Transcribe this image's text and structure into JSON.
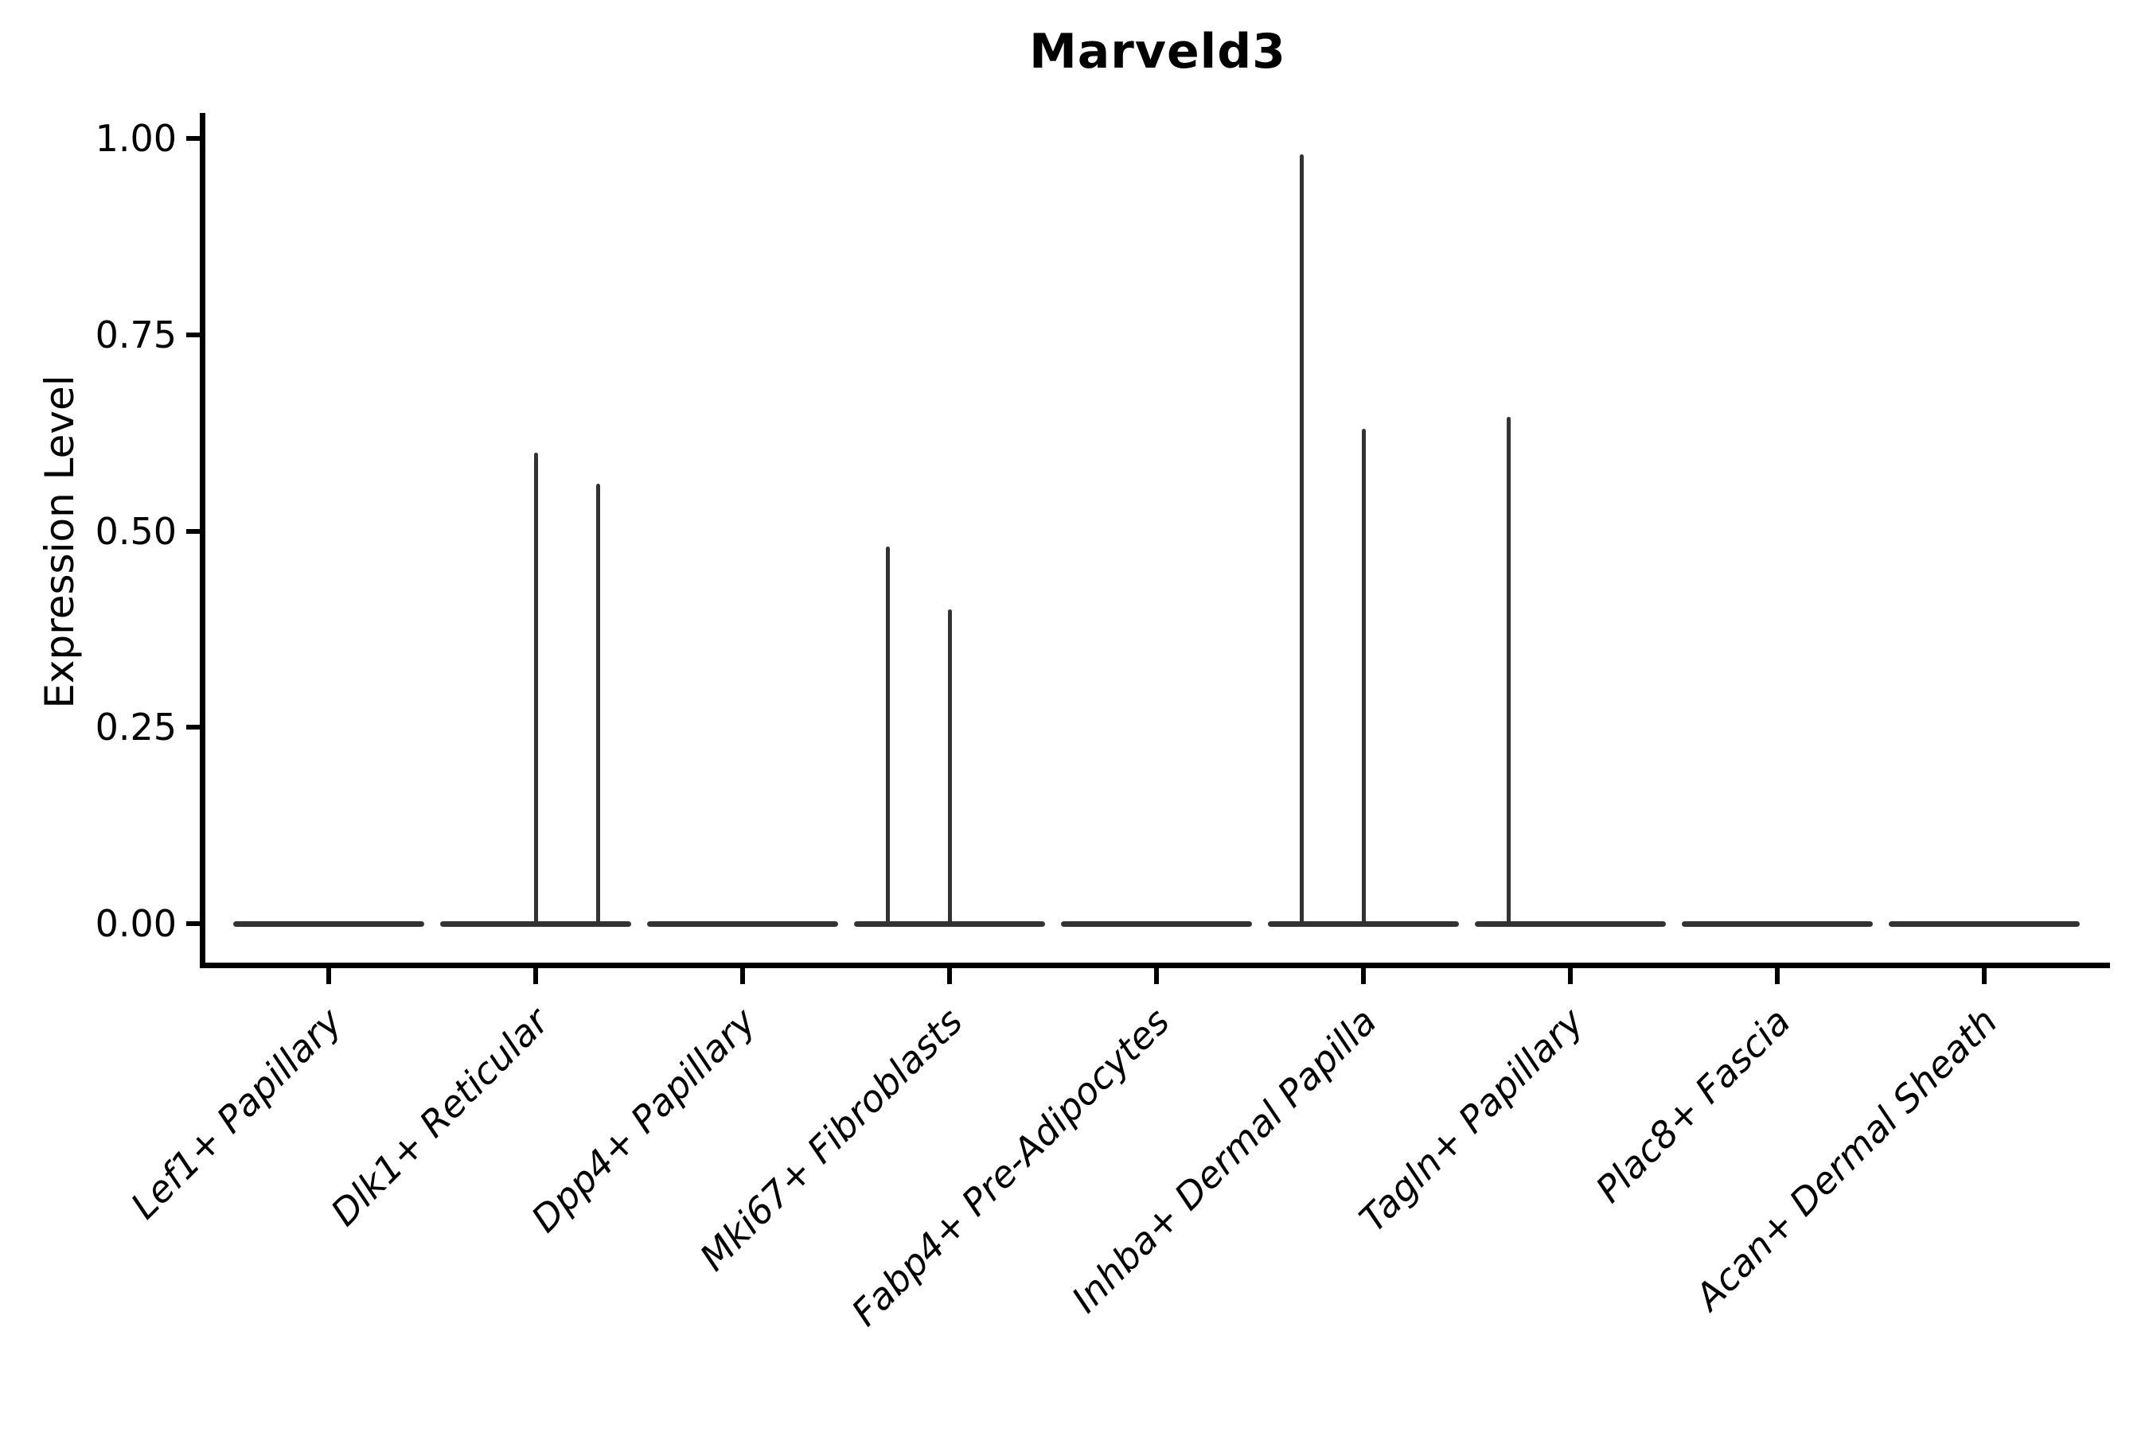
{
  "chart_data": {
    "type": "violin",
    "title": "Marveld3",
    "ylabel": "Expression Level",
    "xlabel": "",
    "grid": false,
    "legend": null,
    "ylim": [
      -0.05,
      1.05
    ],
    "yticks": [
      0.0,
      0.25,
      0.5,
      0.75,
      1.0
    ],
    "ytick_labels": [
      "0.00",
      "0.25",
      "0.50",
      "0.75",
      "1.00"
    ],
    "categories": [
      "Lef1+ Papillary",
      "Dlk1+ Reticular",
      "Dpp4+ Papillary",
      "Mki67+ Fibroblasts",
      "Fabp4+ Pre-Adipocytes",
      "Inhba+ Dermal Papilla",
      "Tagln+ Papillary",
      "Plac8+ Fascia",
      "Acan+ Dermal Sheath"
    ],
    "violins": [
      {
        "category": "Lef1+ Papillary",
        "baseline_value": 0.0,
        "spikes": []
      },
      {
        "category": "Dlk1+ Reticular",
        "baseline_value": 0.0,
        "spikes": [
          {
            "offset": 0.0,
            "value": 0.6
          },
          {
            "offset": 0.3,
            "value": 0.56
          }
        ]
      },
      {
        "category": "Dpp4+ Papillary",
        "baseline_value": 0.0,
        "spikes": []
      },
      {
        "category": "Mki67+ Fibroblasts",
        "baseline_value": 0.0,
        "spikes": [
          {
            "offset": -0.3,
            "value": 0.48
          },
          {
            "offset": 0.0,
            "value": 0.4
          }
        ]
      },
      {
        "category": "Fabp4+ Pre-Adipocytes",
        "baseline_value": 0.0,
        "spikes": []
      },
      {
        "category": "Inhba+ Dermal Papilla",
        "baseline_value": 0.0,
        "spikes": [
          {
            "offset": -0.3,
            "value": 0.98
          },
          {
            "offset": 0.0,
            "value": 0.63
          }
        ]
      },
      {
        "category": "Tagln+ Papillary",
        "baseline_value": 0.0,
        "spikes": [
          {
            "offset": -0.3,
            "value": 0.645
          }
        ]
      },
      {
        "category": "Plac8+ Fascia",
        "baseline_value": 0.0,
        "spikes": []
      },
      {
        "category": "Acan+ Dermal Sheath",
        "baseline_value": 0.0,
        "spikes": []
      }
    ],
    "colors": {
      "violin_stroke": "#333333",
      "axis": "#000000",
      "text": "#000000",
      "background": "#ffffff"
    }
  }
}
